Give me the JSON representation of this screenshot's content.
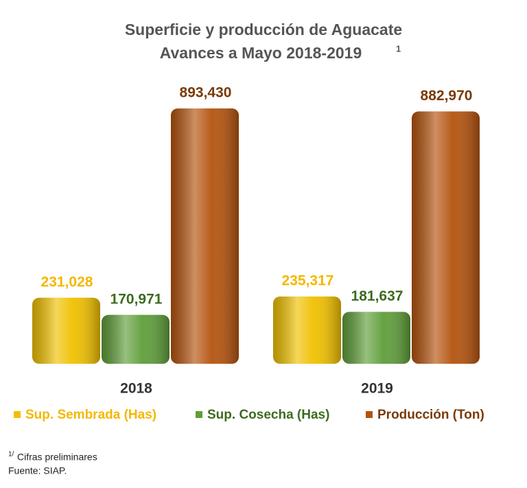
{
  "chart_data": {
    "type": "bar",
    "title": "Superficie y producción de Aguacate",
    "subtitle": "Avances a Mayo 2018-2019",
    "subtitle_note": "1",
    "categories": [
      "2018",
      "2019"
    ],
    "series": [
      {
        "name": "Sup. Sembrada (Has)",
        "color": "#f0c000",
        "label_color": "#f3b800",
        "values": [
          231028,
          235317
        ],
        "value_labels": [
          "231,028",
          "235,317"
        ]
      },
      {
        "name": "Sup. Cosecha (Has)",
        "color": "#5f9e3a",
        "label_color": "#3d6b1f",
        "values": [
          170971,
          181637
        ],
        "value_labels": [
          "170,971",
          "181,637"
        ]
      },
      {
        "name": "Producción (Ton)",
        "color": "#b4530e",
        "label_color": "#7a3a06",
        "values": [
          893430,
          882970
        ],
        "value_labels": [
          "893,430",
          "882,970"
        ]
      }
    ],
    "footnote_mark": "1/",
    "footnote": "Cifras preliminares",
    "source": "Fuente: SIAP."
  }
}
